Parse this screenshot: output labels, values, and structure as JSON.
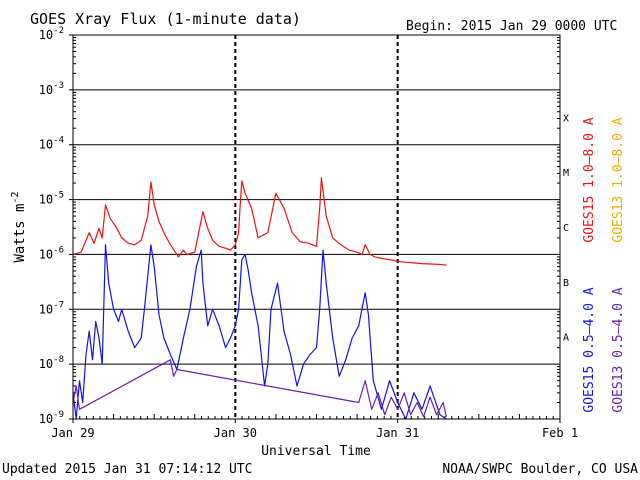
{
  "chart_data": {
    "type": "line",
    "title": "GOES Xray Flux (1-minute data)",
    "begin_label": "Begin:  2015 Jan 29 0000 UTC",
    "xlabel": "Universal Time",
    "ylabel": "Watts m",
    "ylabel_sup": "-2",
    "y_scale": "log",
    "ylim": [
      1e-09,
      0.01
    ],
    "y_ticks": [
      {
        "value": 0.01,
        "base": "10",
        "exp": "-2"
      },
      {
        "value": 0.001,
        "base": "10",
        "exp": "-3"
      },
      {
        "value": 0.0001,
        "base": "10",
        "exp": "-4"
      },
      {
        "value": 1e-05,
        "base": "10",
        "exp": "-5"
      },
      {
        "value": 1e-06,
        "base": "10",
        "exp": "-6"
      },
      {
        "value": 1e-07,
        "base": "10",
        "exp": "-7"
      },
      {
        "value": 1e-08,
        "base": "10",
        "exp": "-8"
      },
      {
        "value": 1e-09,
        "base": "10",
        "exp": "-9"
      }
    ],
    "x_range_days": [
      0,
      3
    ],
    "x_ticks": [
      {
        "day": 0,
        "label": "Jan 29"
      },
      {
        "day": 1,
        "label": "Jan 30"
      },
      {
        "day": 2,
        "label": "Jan 31"
      },
      {
        "day": 3,
        "label": "Feb 1"
      }
    ],
    "flare_classes": [
      {
        "label": "X",
        "value": 0.0001
      },
      {
        "label": "M",
        "value": 1e-05
      },
      {
        "label": "C",
        "value": 1e-06
      },
      {
        "label": "B",
        "value": 1e-07
      },
      {
        "label": "A",
        "value": 1e-08
      }
    ],
    "legend": [
      {
        "text": "GOES15 1.0–8.0 A",
        "color": "#ee1111"
      },
      {
        "text": "GOES13 1.0–8.0 A",
        "color": "#f0a800"
      },
      {
        "text": "GOES15 0.5–4.0 A",
        "color": "#1111ee"
      },
      {
        "text": "GOES13 0.5–4.0 A",
        "color": "#6a1fb0"
      }
    ],
    "series": [
      {
        "name": "GOES15 1.0–8.0 A",
        "color": "#ee1111",
        "x": [
          0,
          0.05,
          0.1,
          0.13,
          0.16,
          0.18,
          0.2,
          0.23,
          0.27,
          0.3,
          0.34,
          0.38,
          0.42,
          0.46,
          0.48,
          0.5,
          0.53,
          0.56,
          0.6,
          0.63,
          0.65,
          0.68,
          0.7,
          0.75,
          0.78,
          0.8,
          0.83,
          0.86,
          0.9,
          0.94,
          0.97,
          1.0,
          1.02,
          1.03,
          1.04,
          1.06,
          1.1,
          1.14,
          1.2,
          1.25,
          1.3,
          1.35,
          1.4,
          1.45,
          1.5,
          1.52,
          1.53,
          1.56,
          1.6,
          1.65,
          1.7,
          1.75,
          1.78,
          1.8,
          1.83,
          1.86,
          1.9,
          1.95,
          2.0,
          2.05,
          2.1,
          2.15,
          2.2,
          2.25,
          2.3
        ],
        "y": [
          1e-06,
          1.1e-06,
          2.5e-06,
          1.6e-06,
          3e-06,
          2e-06,
          8e-06,
          4.5e-06,
          3e-06,
          2e-06,
          1.6e-06,
          1.5e-06,
          1.8e-06,
          5e-06,
          2.1e-05,
          8e-06,
          4e-06,
          2.5e-06,
          1.5e-06,
          1.1e-06,
          9e-07,
          1.2e-06,
          1e-06,
          1.1e-06,
          3e-06,
          6e-06,
          3e-06,
          1.8e-06,
          1.4e-06,
          1.3e-06,
          1.2e-06,
          1.5e-06,
          2.5e-06,
          8e-06,
          2.2e-05,
          1.3e-05,
          7e-06,
          2e-06,
          2.5e-06,
          1.3e-05,
          7e-06,
          2.5e-06,
          1.7e-06,
          1.6e-06,
          1.4e-06,
          7e-06,
          2.5e-05,
          5e-06,
          2e-06,
          1.5e-06,
          1.2e-06,
          1.1e-06,
          1e-06,
          1.5e-06,
          1e-06,
          9e-07,
          8.5e-07,
          8e-07,
          7.5e-07,
          7.2e-07,
          7e-07,
          6.8e-07,
          6.7e-07,
          6.6e-07,
          6.4e-07
        ]
      },
      {
        "name": "GOES15 0.5–4.0 A",
        "color": "#1111ee",
        "x": [
          0,
          0.02,
          0.04,
          0.06,
          0.08,
          0.1,
          0.12,
          0.14,
          0.16,
          0.18,
          0.2,
          0.22,
          0.25,
          0.28,
          0.3,
          0.34,
          0.38,
          0.42,
          0.44,
          0.46,
          0.48,
          0.5,
          0.53,
          0.56,
          0.6,
          0.64,
          0.68,
          0.72,
          0.76,
          0.79,
          0.8,
          0.83,
          0.86,
          0.9,
          0.94,
          0.97,
          1.0,
          1.02,
          1.04,
          1.06,
          1.08,
          1.1,
          1.14,
          1.18,
          1.2,
          1.22,
          1.26,
          1.3,
          1.34,
          1.38,
          1.42,
          1.46,
          1.5,
          1.52,
          1.54,
          1.56,
          1.6,
          1.64,
          1.68,
          1.72,
          1.76,
          1.8,
          1.82,
          1.85,
          1.9,
          1.95,
          2.0,
          2.05,
          2.1,
          2.15,
          2.2,
          2.26,
          2.3
        ],
        "y": [
          3e-09,
          1e-09,
          5e-09,
          2e-09,
          1.5e-08,
          4e-08,
          1.2e-08,
          6e-08,
          3e-08,
          1e-08,
          1.5e-06,
          3e-07,
          1e-07,
          6e-08,
          1e-07,
          4e-08,
          2e-08,
          3e-08,
          1e-07,
          4e-07,
          1.5e-06,
          6e-07,
          8e-08,
          3e-08,
          1.5e-08,
          8e-09,
          3e-08,
          1e-07,
          6e-07,
          1.2e-06,
          3e-07,
          5e-08,
          1e-07,
          5e-08,
          2e-08,
          3e-08,
          5e-08,
          1e-07,
          8e-07,
          1e-06,
          5e-07,
          2e-07,
          5e-08,
          4e-09,
          1e-08,
          1e-07,
          3e-07,
          4e-08,
          1.5e-08,
          4e-09,
          1e-08,
          1.5e-08,
          2e-08,
          1e-07,
          1.2e-06,
          3e-07,
          3e-08,
          6e-09,
          1.2e-08,
          3e-08,
          5e-08,
          2e-07,
          8e-08,
          5e-09,
          1.5e-09,
          5e-09,
          2e-09,
          1e-09,
          3e-09,
          1.5e-09,
          4e-09,
          1.2e-09,
          1e-09
        ]
      },
      {
        "name": "GOES13 0.5–4.0 A",
        "color": "#6a1fb0",
        "x": [
          0.0,
          0.02,
          0.04,
          0.6,
          0.62,
          0.64,
          1.76,
          1.8,
          1.84,
          1.88,
          1.92,
          1.96,
          2.0,
          2.04,
          2.08,
          2.12,
          2.16,
          2.2,
          2.24,
          2.28,
          2.3
        ],
        "y": [
          2e-09,
          4e-09,
          1.5e-09,
          1.2e-08,
          6e-09,
          8e-09,
          2e-09,
          5e-09,
          1.5e-09,
          3e-09,
          1.2e-09,
          2.5e-09,
          1.5e-09,
          3e-09,
          1.2e-09,
          2e-09,
          1.1e-09,
          2.5e-09,
          1.2e-09,
          2e-09,
          1.1e-09
        ]
      }
    ]
  },
  "footer": {
    "updated": "Updated 2015 Jan 31 07:14:12 UTC",
    "source": "NOAA/SWPC Boulder, CO USA"
  }
}
